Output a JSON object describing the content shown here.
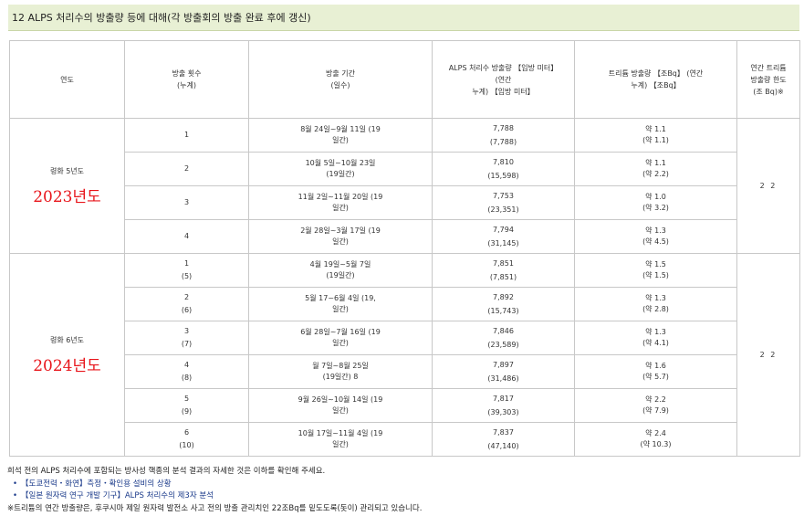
{
  "title": "12 ALPS 처리수의 방출량 등에 대해(각 방출회의 방출 완료 후에 갱신)",
  "headers": {
    "year": "연도",
    "count": "방출 횟수\n(누계)",
    "period": "방출 기간\n(일수)",
    "volume": "ALPS 처리수 방출량 【입방 미터】\n(연간\n누계) 【입방 미터】",
    "tritium": "트리튬 방출량 【조Bq】 (연간\n누계) 【조Bq】",
    "limit": "연간 트리튬\n방출량 한도\n(조 Bq)※"
  },
  "groups": [
    {
      "year_label": "령화 5년도",
      "year_red": "2023년도",
      "limit": "2 2",
      "rows": [
        {
          "count": "1",
          "period": "8월 24일~9월 11일 (19\n일간)",
          "volume": "7,788\n(7,788)",
          "tritium": "약 1.1\n(약 1.1)"
        },
        {
          "count": "2",
          "period": "10월 5일~10월 23일\n(19일간)",
          "volume": "7,810\n(15,598)",
          "tritium": "약 1.1\n(약 2.2)"
        },
        {
          "count": "3",
          "period": "11월 2일~11월 20일 (19\n일간)",
          "volume": "7,753\n(23,351)",
          "tritium": "약 1.0\n(약 3.2)"
        },
        {
          "count": "4",
          "period": "2월 28일~3월 17일 (19\n일간)",
          "volume": "7,794\n(31,145)",
          "tritium": "약 1.3\n(약 4.5)"
        }
      ]
    },
    {
      "year_label": "령화 6년도",
      "year_red": "2024년도",
      "limit": "2 2",
      "rows": [
        {
          "count": "1\n(5)",
          "period": "4월 19일~5월 7일\n(19일간)",
          "volume": "7,851\n(7,851)",
          "tritium": "약 1.5\n(약 1.5)"
        },
        {
          "count": "2\n(6)",
          "period": "5월 17~6월 4일 (19,\n일간)",
          "volume": "7,892\n(15,743)",
          "tritium": "약 1.3\n(약 2.8)"
        },
        {
          "count": "3\n(7)",
          "period": "6월 28일~7월 16일 (19\n일간)",
          "volume": "7,846\n(23,589)",
          "tritium": "약 1.3\n(약 4.1)"
        },
        {
          "count": "4\n(8)",
          "period": "월 7일~8월 25일\n(19일간) 8",
          "volume": "7,897\n(31,486)",
          "tritium": "약 1.6\n(약 5.7)"
        },
        {
          "count": "5\n(9)",
          "period": "9월 26일~10월 14일 (19\n일간)",
          "volume": "7,817\n(39,303)",
          "tritium": "약 2.2\n(약 7.9)"
        },
        {
          "count": "6\n(10)",
          "period": "10월 17일~11월 4일 (19\n일간)",
          "volume": "7,837\n(47,140)",
          "tritium": "약 2.4\n(약 10.3)"
        }
      ]
    }
  ],
  "footer": {
    "note": "희석 전의 ALPS 처리수에 포함되는 방사성 핵종의 분석 결과의 자세한 것은 이하를 확인해 주세요.",
    "link1": "【도쿄전력・화연】측정・확인용 설비의 상황",
    "link2": "【일본 원자력 연구 개발 기구】ALPS 처리수의 제3자 분석",
    "footnote": "※트리튬의 연간 방출량은, 후쿠시마 제일 원자력 발전소 사고 전의 방출 관리치인 22조Bq를 밑도도록(돗이) 관리되고 있습니다.",
    "bullet": "•"
  }
}
